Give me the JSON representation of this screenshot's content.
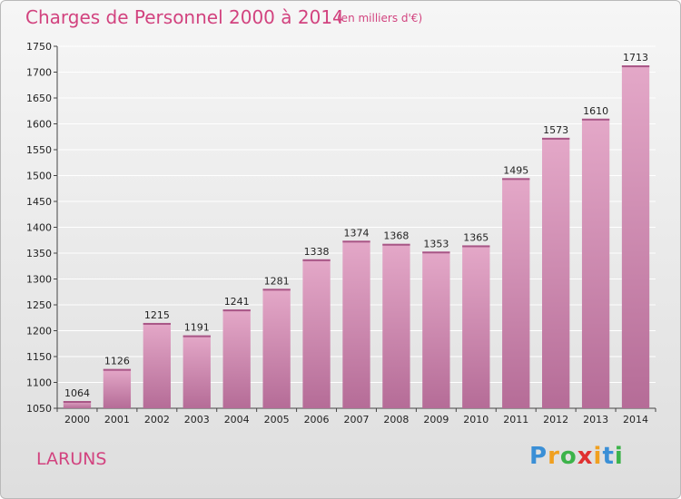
{
  "header": {
    "title": "Charges de Personnel 2000 à 2014",
    "subtitle": "(en milliers d'€)"
  },
  "footer": {
    "commune": "LARUNS",
    "logo": "Proxiti"
  },
  "colors": {
    "accent": "#d2437f",
    "bar_light": "#e4a8c8",
    "bar_dark": "#b56c97"
  },
  "chart_data": {
    "type": "bar",
    "title": "Charges de Personnel 2000 à 2014",
    "subtitle": "(en milliers d'€)",
    "categories": [
      "2000",
      "2001",
      "2002",
      "2003",
      "2004",
      "2005",
      "2006",
      "2007",
      "2008",
      "2009",
      "2010",
      "2011",
      "2012",
      "2013",
      "2014"
    ],
    "values": [
      1064,
      1126,
      1215,
      1191,
      1241,
      1281,
      1338,
      1374,
      1368,
      1353,
      1365,
      1495,
      1573,
      1610,
      1713
    ],
    "ylim": [
      1050,
      1750
    ],
    "yticks": [
      1050,
      1100,
      1150,
      1200,
      1250,
      1300,
      1350,
      1400,
      1450,
      1500,
      1550,
      1600,
      1650,
      1700,
      1750
    ],
    "xlabel": "",
    "ylabel": "",
    "grid": true,
    "legend": "none"
  }
}
